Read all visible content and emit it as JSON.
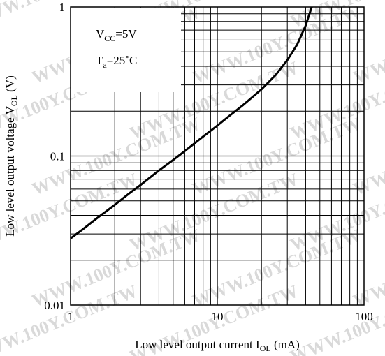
{
  "watermark": {
    "text": "WWW.100Y.COM.TW",
    "color": "#d9d9d9"
  },
  "chart_data": {
    "type": "line",
    "title": "",
    "xlabel": "Low level output current I",
    "xlabel_sub": "OL",
    "xlabel_unit": " (mA)",
    "ylabel": "Low level output voltage V",
    "ylabel_sub": "OL",
    "ylabel_unit": " (V)",
    "x_scale": "log",
    "y_scale": "log",
    "xlim": [
      1,
      100
    ],
    "ylim": [
      0.01,
      1
    ],
    "x_ticks": [
      {
        "value": 1,
        "label": "1"
      },
      {
        "value": 10,
        "label": "10"
      },
      {
        "value": 100,
        "label": "100"
      }
    ],
    "y_ticks": [
      {
        "value": 0.01,
        "label": "0.01"
      },
      {
        "value": 0.1,
        "label": "0.1"
      },
      {
        "value": 1,
        "label": "1"
      }
    ],
    "grid": true,
    "series": [
      {
        "x": [
          1,
          1.2,
          1.5,
          2,
          2.5,
          3,
          4,
          5,
          6,
          8,
          10,
          12,
          15,
          20,
          25,
          30,
          35,
          40,
          44
        ],
        "y": [
          0.028,
          0.032,
          0.038,
          0.047,
          0.056,
          0.064,
          0.08,
          0.094,
          0.108,
          0.135,
          0.16,
          0.185,
          0.22,
          0.28,
          0.35,
          0.44,
          0.56,
          0.75,
          1.0
        ]
      }
    ],
    "conditions": [
      {
        "main": "V",
        "sub": "CC",
        "rest": "=5V"
      },
      {
        "main": "T",
        "sub": "a",
        "rest": "=25˚C"
      }
    ],
    "line_color": "#000000"
  }
}
